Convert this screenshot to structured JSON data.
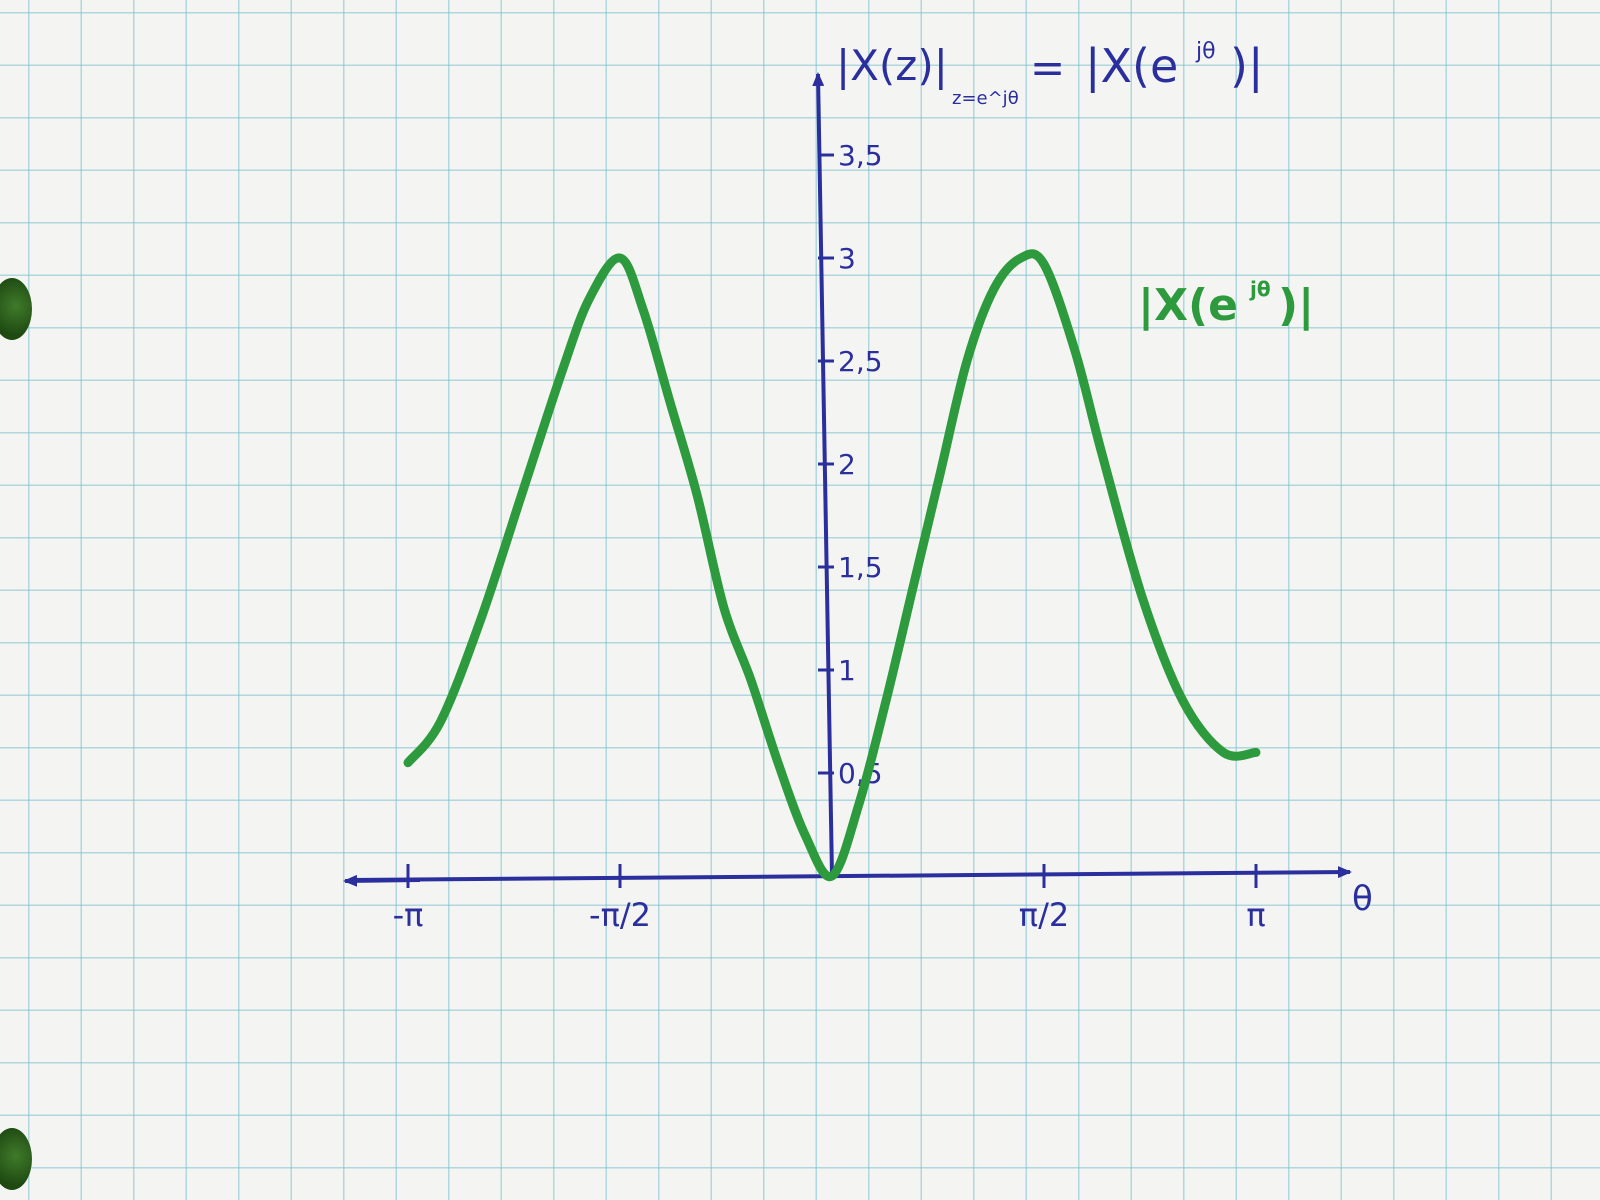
{
  "chart_data": {
    "type": "line",
    "title": "|X(z)|z=e^jθ = |X(e^jθ)|",
    "title_parts": {
      "lhs": "|X(z)|",
      "subscript": "z=e^jθ",
      "eq": "=",
      "rhs_pre": "|X(e",
      "rhs_sup": "jθ",
      "rhs_post": ")|"
    },
    "xlabel": "θ",
    "ylabel": "",
    "xlim": [
      -3.1416,
      3.1416
    ],
    "ylim": [
      0,
      3.5
    ],
    "x_ticks": [
      {
        "value": -3.1416,
        "label": "-π"
      },
      {
        "value": -1.5708,
        "label": "-π/2"
      },
      {
        "value": 1.5708,
        "label": "π/2"
      },
      {
        "value": 3.1416,
        "label": "π"
      }
    ],
    "y_ticks": [
      {
        "value": 0.5,
        "label": "0,5"
      },
      {
        "value": 1,
        "label": "1"
      },
      {
        "value": 1.5,
        "label": "1,5"
      },
      {
        "value": 2,
        "label": "2"
      },
      {
        "value": 2.5,
        "label": "2,5"
      },
      {
        "value": 3,
        "label": "3"
      },
      {
        "value": 3.5,
        "label": "3,5"
      }
    ],
    "series": [
      {
        "name": "|X(e^jθ)|",
        "label_parts": {
          "pre": "|X(e",
          "sup": "jθ",
          "post": ")|"
        },
        "color": "#2e9a3e",
        "x": [
          -3.1416,
          -2.9,
          -2.6,
          -2.3,
          -2.0,
          -1.8,
          -1.5708,
          -1.4,
          -1.2,
          -1.0,
          -0.8,
          -0.6,
          -0.4,
          -0.2,
          0,
          0.2,
          0.4,
          0.6,
          0.8,
          1.0,
          1.2,
          1.4,
          1.5708,
          1.8,
          2.0,
          2.3,
          2.6,
          2.9,
          3.1416
        ],
        "y": [
          0.55,
          0.75,
          1.25,
          1.85,
          2.45,
          2.8,
          3.0,
          2.75,
          2.3,
          1.85,
          1.3,
          0.95,
          0.55,
          0.2,
          0.0,
          0.35,
          0.85,
          1.4,
          1.95,
          2.5,
          2.85,
          3.0,
          2.97,
          2.55,
          2.05,
          1.35,
          0.85,
          0.6,
          0.6
        ]
      }
    ],
    "grid": true,
    "legend": "right, inline label next to curve",
    "colors": {
      "axes": "#2b2f9e",
      "curve": "#2e9a3e",
      "grid": "#7fbfcc"
    }
  }
}
